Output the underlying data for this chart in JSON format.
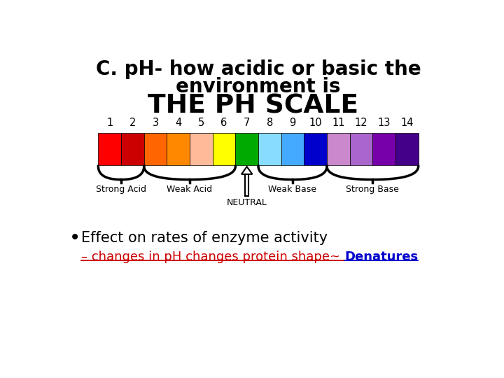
{
  "title_line1": "C. pH- how acidic or basic the",
  "title_line2": "environment is",
  "scale_title": "THE PH SCALE",
  "ph_numbers": [
    1,
    2,
    3,
    4,
    5,
    6,
    7,
    8,
    9,
    10,
    11,
    12,
    13,
    14
  ],
  "ph_colors": [
    "#FF0000",
    "#CC0000",
    "#FF6600",
    "#FF8800",
    "#FFBB99",
    "#FFFF00",
    "#00AA00",
    "#88DDFF",
    "#44AAFF",
    "#0000CC",
    "#CC88CC",
    "#AA66CC",
    "#7700AA",
    "#440088"
  ],
  "background_color": "#FFFFFF",
  "text_color": "#000000",
  "bullet_text": "Effect on rates of enzyme activity",
  "sub_text_red": "– changes in pH changes protein shape~ ",
  "sub_text_blue": "Denatures",
  "red_color": "#CC0000",
  "blue_color": "#0000CC"
}
